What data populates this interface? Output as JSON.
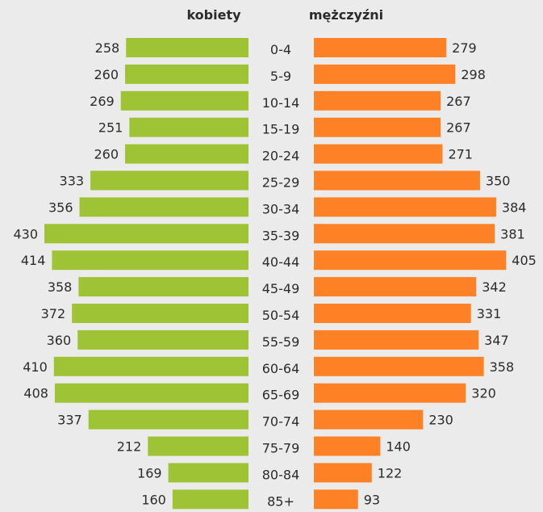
{
  "chart_data": {
    "type": "bar",
    "subtype": "population-pyramid",
    "orientation": "horizontal",
    "categories": [
      "0-4",
      "5-9",
      "10-14",
      "15-19",
      "20-24",
      "25-29",
      "30-34",
      "35-39",
      "40-44",
      "45-49",
      "50-54",
      "55-59",
      "60-64",
      "65-69",
      "70-74",
      "75-79",
      "80-84",
      "85+"
    ],
    "series": [
      {
        "name": "kobiety",
        "color": "#9ec435",
        "side": "left",
        "values": [
          258,
          260,
          269,
          251,
          260,
          333,
          356,
          430,
          414,
          358,
          372,
          360,
          410,
          408,
          337,
          212,
          169,
          160
        ]
      },
      {
        "name": "mężczyźni",
        "color": "#ff8126",
        "side": "right",
        "values": [
          279,
          298,
          267,
          267,
          271,
          350,
          384,
          381,
          405,
          342,
          331,
          347,
          358,
          320,
          230,
          140,
          122,
          93
        ]
      }
    ],
    "xlim": [
      0,
      430
    ],
    "grid": false,
    "legend": "top"
  }
}
